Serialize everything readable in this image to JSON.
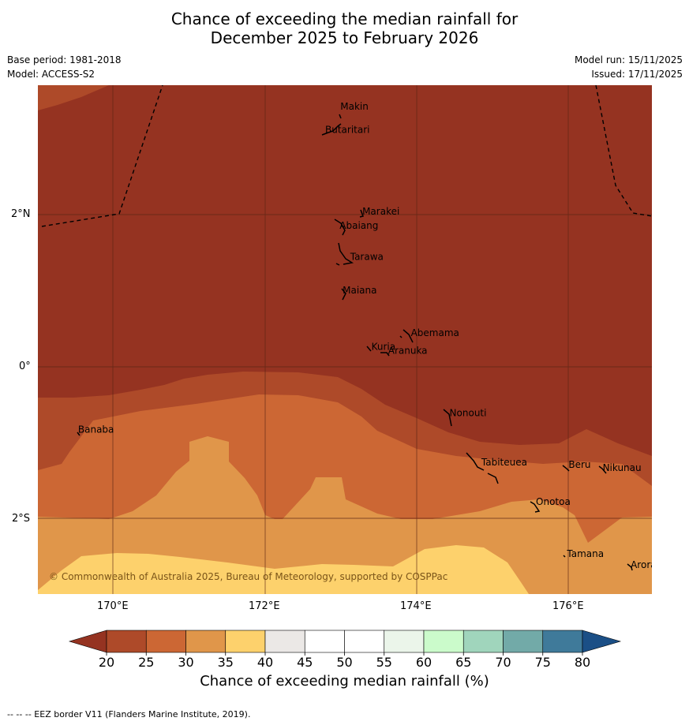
{
  "title": {
    "line1": "Chance of exceeding the median rainfall for",
    "line2": "December 2025 to February 2026"
  },
  "meta": {
    "base_period": "Base period: 1981-2018",
    "model": "Model: ACCESS-S2",
    "model_run": "Model run: 15/11/2025",
    "issued": "Issued: 17/11/2025"
  },
  "map": {
    "lon_labels": [
      "170°E",
      "172°E",
      "174°E",
      "176°E"
    ],
    "lat_labels": [
      "2°N",
      "0°",
      "2°S"
    ],
    "lon_range": [
      169.0,
      177.1
    ],
    "lat_range": [
      -2.99,
      3.7
    ],
    "places": [
      {
        "name": "Makin",
        "lon": 172.99,
        "lat": 3.38
      },
      {
        "name": "Butaritari",
        "lon": 172.79,
        "lat": 3.07
      },
      {
        "name": "Marakei",
        "lon": 173.28,
        "lat": 2.0
      },
      {
        "name": "Abaiang",
        "lon": 172.98,
        "lat": 1.81
      },
      {
        "name": "Tarawa",
        "lon": 173.12,
        "lat": 1.4
      },
      {
        "name": "Maiana",
        "lon": 173.02,
        "lat": 0.96
      },
      {
        "name": "Abemama",
        "lon": 173.92,
        "lat": 0.4
      },
      {
        "name": "Kuria",
        "lon": 173.4,
        "lat": 0.22
      },
      {
        "name": "Aranuka",
        "lon": 173.62,
        "lat": 0.17
      },
      {
        "name": "Nonouti",
        "lon": 174.43,
        "lat": -0.65
      },
      {
        "name": "Banaba",
        "lon": 169.53,
        "lat": -0.87
      },
      {
        "name": "Tabiteuea",
        "lon": 174.85,
        "lat": -1.3
      },
      {
        "name": "Beru",
        "lon": 176.0,
        "lat": -1.33
      },
      {
        "name": "Nikunau",
        "lon": 176.45,
        "lat": -1.37
      },
      {
        "name": "Onotoa",
        "lon": 175.57,
        "lat": -1.82
      },
      {
        "name": "Tamana",
        "lon": 175.98,
        "lat": -2.5
      },
      {
        "name": "Arorae",
        "lon": 176.82,
        "lat": -2.65
      }
    ],
    "copyright": "© Commonwealth of Australia 2025, Bureau of Meteorology, supported by COSPPac"
  },
  "colorbar": {
    "ticks": [
      "20",
      "25",
      "30",
      "35",
      "40",
      "45",
      "50",
      "55",
      "60",
      "65",
      "70",
      "75",
      "80"
    ],
    "colors": [
      "#ae4a29",
      "#cc6734",
      "#e0964a",
      "#fdd16c",
      "#ebe8e6",
      "#ffffff",
      "#ffffff",
      "#ebf5ea",
      "#cbfbcb",
      "#a0d5bc",
      "#72aaa8",
      "#3f7a9a"
    ],
    "under_color": "#953321",
    "over_color": "#1b4f86",
    "label": "Chance of exceeding median rainfall (%)"
  },
  "legend_note": "--  --  -- EEZ border V11 (Flanders Marine Institute, 2019)."
}
